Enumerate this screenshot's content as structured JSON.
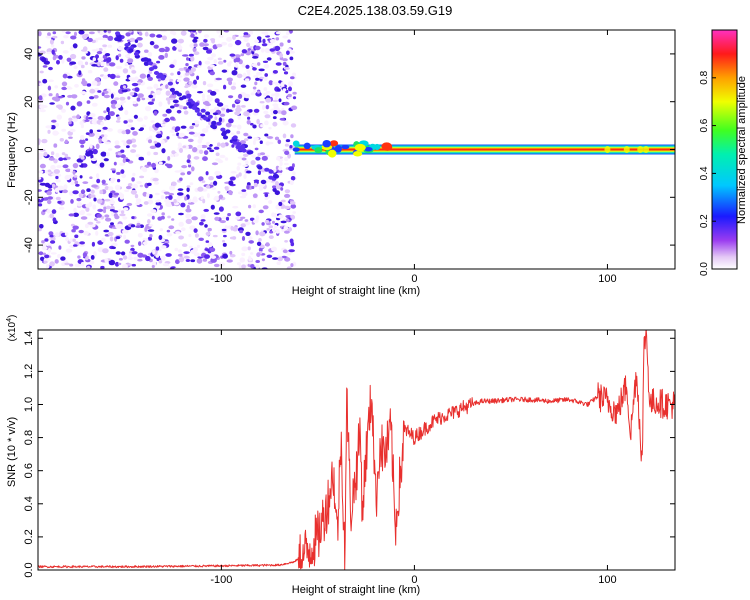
{
  "title": "C2E4.2025.138.03.59.G19",
  "colors": {
    "snr_line": "#e8302e",
    "background": "#ffffff",
    "frame": "#000000"
  },
  "chart_data": [
    {
      "type": "heatmap",
      "xlabel": "Height of straight line (km)",
      "ylabel": "Frequency (Hz)",
      "xlim": [
        -195,
        135
      ],
      "ylim": [
        -50,
        50
      ],
      "xticks": [
        -100,
        0,
        100
      ],
      "xtick_labels": [
        "-100",
        "0",
        "100"
      ],
      "yticks": [
        -40,
        -20,
        0,
        20,
        40
      ],
      "ytick_labels": [
        "-40",
        "-20",
        "0",
        "20",
        "40"
      ],
      "grid": false,
      "features": {
        "noise_region_x": [
          -195,
          -62
        ],
        "descending_streak": {
          "x": [
            -155,
            -70
          ],
          "y": [
            48,
            -13
          ]
        },
        "strong_signal_line": {
          "x": [
            -62,
            135
          ],
          "y": 0,
          "amplitude": 0.97
        },
        "perturbed_segment_x": [
          -62,
          -10
        ]
      },
      "colorbar": {
        "label": "Normalized spectral amplitude",
        "range": [
          0.0,
          1.0
        ],
        "ticks": [
          0.0,
          0.2,
          0.4,
          0.6,
          0.8
        ],
        "tick_labels": [
          "0.0",
          "0.2",
          "0.4",
          "0.6",
          "0.8"
        ],
        "colormap": "rainbow (violet-blue-cyan-green-yellow-orange-red-magenta)"
      }
    },
    {
      "type": "line",
      "xlabel": "Height of straight line (km)",
      "ylabel": "SNR (10 * v/v)",
      "y_multiplier": "(x10^4)",
      "xlim": [
        -195,
        135
      ],
      "ylim": [
        0.0,
        1.45
      ],
      "xticks": [
        -100,
        0,
        100
      ],
      "xtick_labels": [
        "-100",
        "0",
        "100"
      ],
      "yticks": [
        0.0,
        0.2,
        0.4,
        0.6,
        0.8,
        1.0,
        1.2,
        1.4
      ],
      "ytick_labels": [
        "0.0",
        "0.2",
        "0.4",
        "0.6",
        "0.8",
        "1.0",
        "1.2",
        "1.4"
      ],
      "grid": false,
      "series": [
        {
          "color": "#e8302e",
          "x": [
            -195,
            -150,
            -100,
            -70,
            -62,
            -55,
            -50,
            -45,
            -42,
            -40,
            -38,
            -36,
            -35,
            -33,
            -30,
            -28,
            -27,
            -25,
            -22,
            -20,
            -18,
            -15,
            -12,
            -10,
            -5,
            0,
            5,
            10,
            15,
            20,
            25,
            30,
            35,
            40,
            50,
            60,
            70,
            80,
            90,
            95,
            100,
            105,
            110,
            112,
            115,
            118,
            119,
            120,
            122,
            125,
            130,
            135
          ],
          "y": [
            0.02,
            0.02,
            0.025,
            0.03,
            0.05,
            0.12,
            0.2,
            0.4,
            0.6,
            0.2,
            0.8,
            0.1,
            1.05,
            0.35,
            0.6,
            0.85,
            0.35,
            0.7,
            1.08,
            0.4,
            0.75,
            0.7,
            0.85,
            0.25,
            0.85,
            0.8,
            0.85,
            0.9,
            0.93,
            0.95,
            0.98,
            1.0,
            1.02,
            1.02,
            1.03,
            1.03,
            1.02,
            1.03,
            1.0,
            1.05,
            1.02,
            0.95,
            1.12,
            0.82,
            1.2,
            0.65,
            1.35,
            1.45,
            1.0,
            1.02,
            1.0,
            1.0
          ]
        }
      ]
    }
  ]
}
